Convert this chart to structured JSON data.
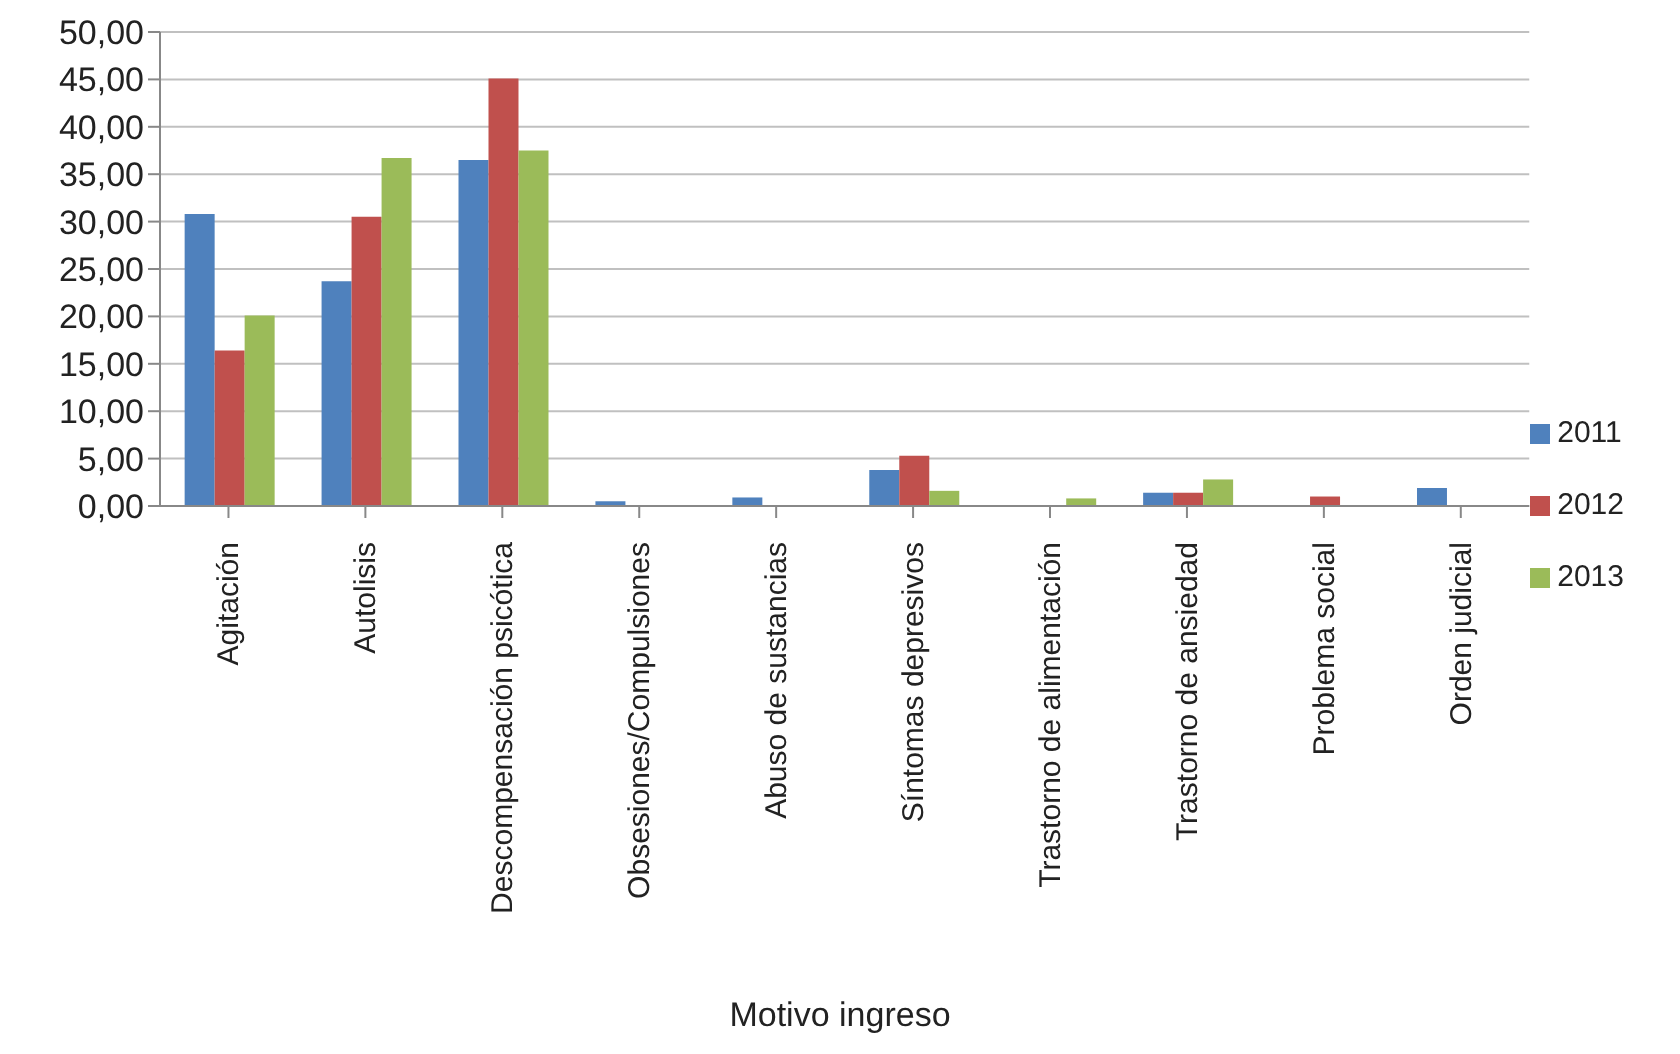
{
  "chart_data": {
    "type": "bar",
    "xlabel": "Motivo ingreso",
    "categories": [
      "Agitación",
      "Autolisis",
      "Descompensación psicótica",
      "Obsesiones/Compulsiones",
      "Abuso de sustancias",
      "Síntomas depresivos",
      "Trastorno de alimentación",
      "Trastorno de ansiedad",
      "Problema social",
      "Orden judicial"
    ],
    "series": [
      {
        "name": "2011",
        "color": "#4f81bd",
        "values": [
          30.8,
          23.7,
          36.5,
          0.5,
          0.9,
          3.8,
          0,
          1.4,
          0,
          1.9
        ]
      },
      {
        "name": "2012",
        "color": "#c0504d",
        "values": [
          16.4,
          30.5,
          45.1,
          0,
          0,
          5.3,
          0,
          1.4,
          1,
          0
        ]
      },
      {
        "name": "2013",
        "color": "#9bbb59",
        "values": [
          20.1,
          36.7,
          37.5,
          0,
          0,
          1.6,
          0.8,
          2.8,
          0,
          0
        ]
      }
    ],
    "ylim": [
      0,
      50
    ],
    "yticks": [
      {
        "value": 0,
        "label": "0,00"
      },
      {
        "value": 5,
        "label": "5,00"
      },
      {
        "value": 10,
        "label": "10,00"
      },
      {
        "value": 15,
        "label": "15,00"
      },
      {
        "value": 20,
        "label": "20,00"
      },
      {
        "value": 25,
        "label": "25,00"
      },
      {
        "value": 30,
        "label": "30,00"
      },
      {
        "value": 35,
        "label": "35,00"
      },
      {
        "value": 40,
        "label": "40,00"
      },
      {
        "value": 45,
        "label": "45,00"
      },
      {
        "value": 50,
        "label": "50,00"
      }
    ],
    "grid": "y",
    "legend": "right"
  }
}
